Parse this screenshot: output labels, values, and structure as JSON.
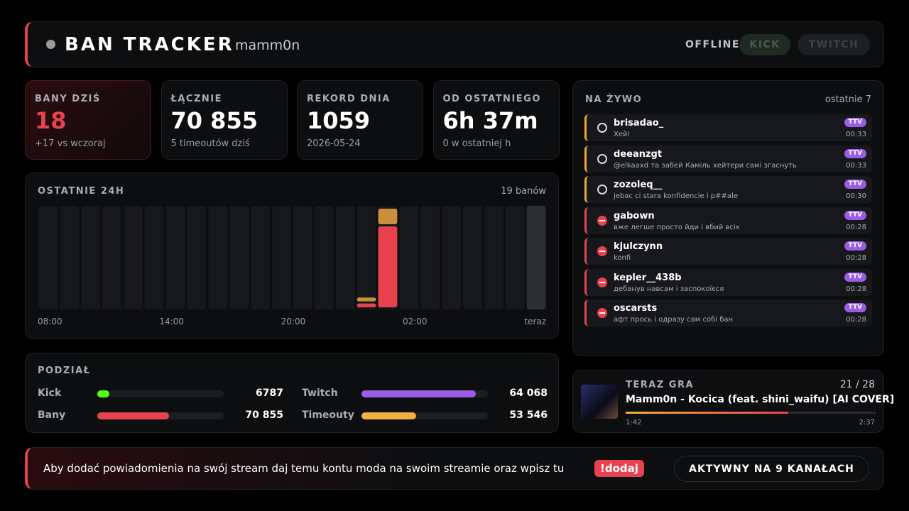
{
  "header": {
    "title": "BAN TRACKER",
    "channel": "mamm0n",
    "status": "OFFLINE",
    "platforms": [
      "KICK",
      "TWITCH"
    ]
  },
  "stats": [
    {
      "label": "BANY DZIŚ",
      "value": "18",
      "sub": "+17 vs wczoraj"
    },
    {
      "label": "ŁĄCZNIE",
      "value": "70 855",
      "sub": "5 timeoutów dziś"
    },
    {
      "label": "REKORD DNIA",
      "value": "1059",
      "sub": "2026-05-24"
    },
    {
      "label": "OD OSTATNIEGO",
      "value": "6h 37m",
      "sub": "0 w ostatniej h"
    }
  ],
  "chart_data": {
    "type": "bar",
    "stacked": true,
    "title": "OSTATNIE 24H",
    "total_label": "19 banów",
    "x_labels": [
      "08:00",
      "14:00",
      "20:00",
      "02:00",
      "teraz"
    ],
    "series": [
      {
        "color": "#e8424f",
        "values": [
          0,
          0,
          0,
          0,
          0,
          0,
          0,
          0,
          0,
          0,
          0,
          0,
          0,
          0,
          0,
          1,
          14,
          0,
          0,
          0,
          0,
          0,
          0,
          0
        ]
      },
      {
        "color": "#c8903a",
        "values": [
          0,
          0,
          0,
          0,
          0,
          0,
          0,
          0,
          0,
          0,
          0,
          0,
          0,
          0,
          0,
          1,
          3,
          0,
          0,
          0,
          0,
          0,
          0,
          0
        ]
      }
    ]
  },
  "split": {
    "title": "PODZIAŁ",
    "pairs": [
      [
        {
          "name": "Kick",
          "value": 6787,
          "value_label": "6787",
          "color": "#53fc18"
        },
        {
          "name": "Twitch",
          "value": 64068,
          "value_label": "64 068",
          "color": "#9b5de5"
        }
      ],
      [
        {
          "name": "Bany",
          "value": 70855,
          "value_label": "70 855",
          "color": "#e8424f"
        },
        {
          "name": "Timeouty",
          "value": 53546,
          "value_label": "53 546",
          "color": "#f0b03f"
        }
      ]
    ]
  },
  "live": {
    "title": "NA ŻYWO",
    "subtitle": "ostatnie 7",
    "items": [
      {
        "icon": "timer",
        "color": "#e8a838",
        "name": "brisadao_",
        "message": "Хей!",
        "badge": "TTV",
        "time": "00:33"
      },
      {
        "icon": "timer",
        "color": "#e8a838",
        "name": "deeanzgt",
        "message": "@elkaaxd та забей Каміль хейтери самі згаснуть",
        "badge": "TTV",
        "time": "00:33"
      },
      {
        "icon": "timer",
        "color": "#e8a838",
        "name": "zozoleq__",
        "message": "jebac ci stara konfidencie i p##ale",
        "badge": "TTV",
        "time": "00:30"
      },
      {
        "icon": "ban",
        "color": "#e8424f",
        "name": "gabown",
        "message": "вже легше просто йди і вбий всіх",
        "badge": "TTV",
        "time": "00:28"
      },
      {
        "icon": "ban",
        "color": "#e8424f",
        "name": "kjulczynn",
        "message": "konfi",
        "badge": "TTV",
        "time": "00:28"
      },
      {
        "icon": "ban",
        "color": "#e8424f",
        "name": "kepler__438b",
        "message": "дебанув навсам і заспокоїєся",
        "badge": "TTV",
        "time": "00:28"
      },
      {
        "icon": "ban",
        "color": "#e8424f",
        "name": "oscarsts",
        "message": "афт прось і одразу сам собі бан",
        "badge": "TTV",
        "time": "00:28"
      }
    ]
  },
  "now_playing": {
    "title": "TERAZ GRA",
    "position": "21 / 28",
    "song": "Mamm0n - Kocica (feat. shini_waifu) [AI COVER]",
    "elapsed": "1:42",
    "duration": "2:37"
  },
  "footer": {
    "message": "Aby dodać powiadomienia na swój stream daj temu kontu moda na swoim streamie oraz wpisz tu",
    "command": "!dodaj",
    "status": "AKTYWNY NA 9 KANAŁACH"
  }
}
